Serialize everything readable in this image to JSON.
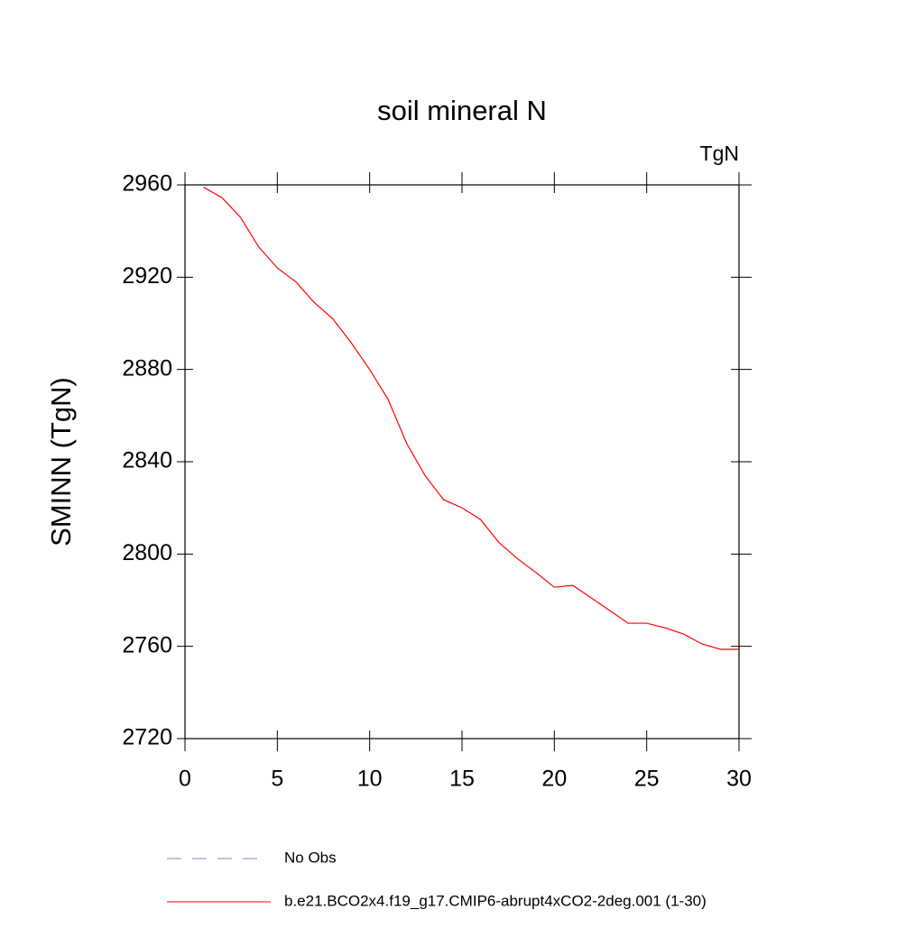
{
  "chart_data": {
    "type": "line",
    "title": "soil mineral N",
    "units_label": "TgN",
    "y_label": "SMINN  (TgN)",
    "x": [
      1,
      2,
      3,
      4,
      5,
      6,
      7,
      8,
      9,
      10,
      11,
      12,
      13,
      14,
      15,
      16,
      17,
      18,
      19,
      20,
      21,
      22,
      23,
      24,
      25,
      26,
      27,
      28,
      29,
      30
    ],
    "series": [
      {
        "name": "b.e21.BCO2x4.f19_g17.CMIP6-abrupt4xCO2-2deg.001 (1-30)",
        "color": "#ff0000",
        "values": [
          2959,
          2954.5,
          2946,
          2933,
          2924,
          2918,
          2909,
          2902,
          2891.6,
          2880,
          2867,
          2848,
          2834,
          2823.6,
          2820,
          2815,
          2805,
          2798,
          2792,
          2785.6,
          2786.4,
          2781,
          2775.5,
          2770,
          2770,
          2768,
          2765.3,
          2761,
          2758.7,
          2758.7
        ]
      }
    ],
    "legend_extra": [
      {
        "name": "No Obs",
        "color": "#8080d0",
        "style": "dashed"
      }
    ],
    "xlim": [
      0,
      30
    ],
    "xticks": [
      0,
      5,
      10,
      15,
      20,
      25,
      30
    ],
    "ylim": [
      2720,
      2960
    ],
    "yticks": [
      2720,
      2760,
      2800,
      2840,
      2880,
      2920,
      2960
    ]
  }
}
